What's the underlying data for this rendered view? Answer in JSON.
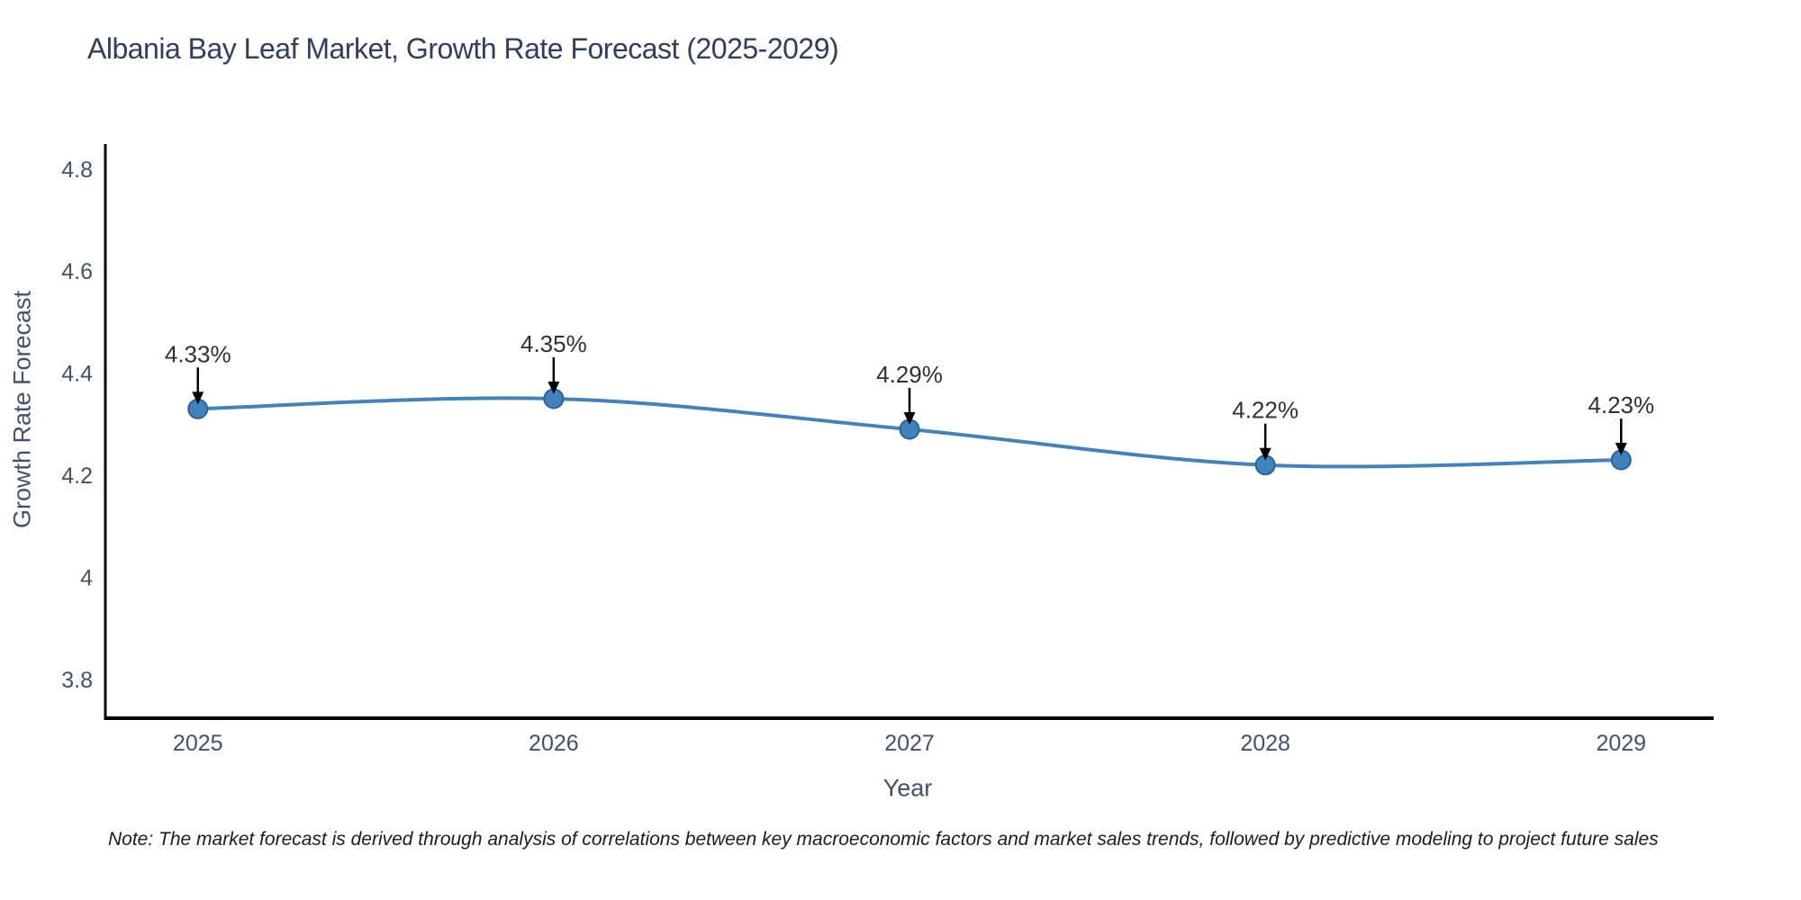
{
  "chart": {
    "title": "Albania Bay Leaf Market, Growth Rate Forecast (2025-2029)",
    "xlabel": "Year",
    "ylabel": "Growth Rate Forecast"
  },
  "note": "Note: The market forecast is derived through analysis of correlations between key macroeconomic factors and market sales trends, followed by predictive modeling to project future sales",
  "chart_data": {
    "type": "line",
    "title": "Albania Bay Leaf Market, Growth Rate Forecast (2025-2029)",
    "xlabel": "Year",
    "ylabel": "Growth Rate Forecast",
    "x": [
      2025,
      2026,
      2027,
      2028,
      2029
    ],
    "series": [
      {
        "name": "Growth Rate Forecast",
        "values": [
          4.33,
          4.35,
          4.29,
          4.22,
          4.23
        ]
      }
    ],
    "point_labels": [
      "4.33%",
      "4.35%",
      "4.29%",
      "4.22%",
      "4.23%"
    ],
    "xtick_labels": [
      "2025",
      "2026",
      "2027",
      "2028",
      "2029"
    ],
    "yticks": [
      3.8,
      4.0,
      4.2,
      4.4,
      4.6,
      4.8
    ],
    "ytick_labels": [
      "3.8",
      "4",
      "4.2",
      "4.4",
      "4.6",
      "4.8"
    ],
    "xlim": [
      2024.74,
      2029.26
    ],
    "ylim": [
      3.724,
      4.849
    ],
    "grid": false,
    "legend": "none",
    "line_smooth": true,
    "colors": {
      "line": "#4682b4",
      "marker_fill": "#4181bd",
      "marker_edge": "#2e6293",
      "annotation_text": "#303030",
      "arrow": "#000000",
      "axis_spine": "#000000",
      "tick_label": "#42526b",
      "title": "#2f3f5c"
    }
  }
}
